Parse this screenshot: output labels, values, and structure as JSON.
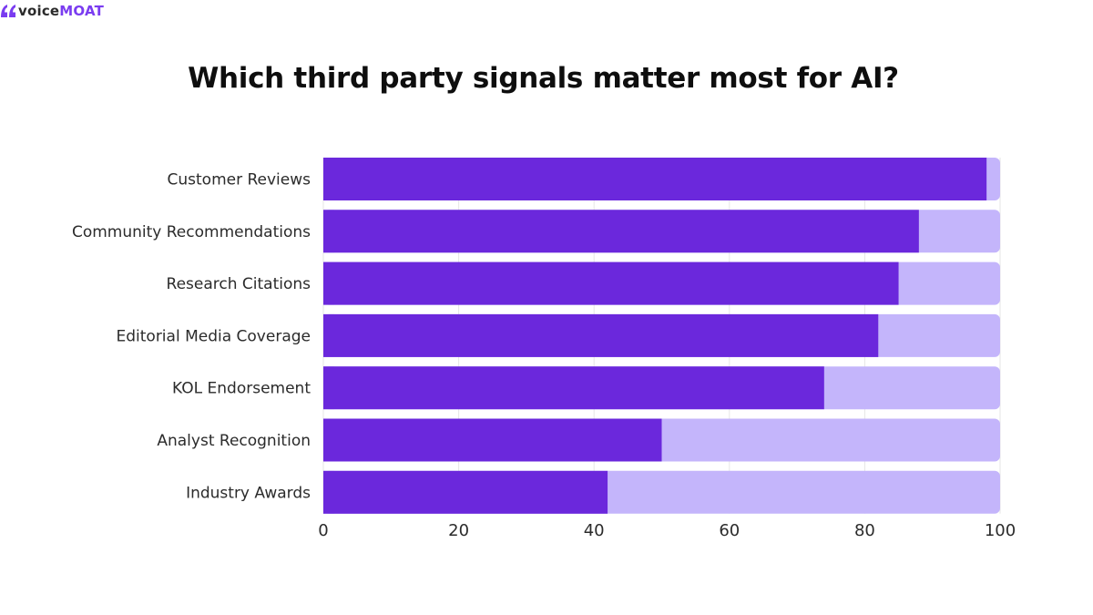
{
  "brand": {
    "name_part1": "voice",
    "name_part2": "MOAT",
    "icon": "quote-mark-icon",
    "color_part1": "#2a2a2a",
    "color_part2": "#7a3cf0"
  },
  "colors": {
    "bar_fill": "#6b28dc",
    "bar_track": "#c4b5fb",
    "gridline": "#e6e6e6"
  },
  "chart_data": {
    "type": "bar",
    "orientation": "horizontal",
    "stacked_against_total": true,
    "title": "Which third party signals matter most for AI?",
    "xlabel": "",
    "ylabel": "",
    "categories": [
      "Customer Reviews",
      "Community Recommendations",
      "Research Citations",
      "Editorial Media Coverage",
      "KOL Endorsement",
      "Analyst Recognition",
      "Industry Awards"
    ],
    "values": [
      98,
      88,
      85,
      82,
      74,
      50,
      42
    ],
    "total": 100,
    "xlim": [
      0,
      100
    ],
    "xticks": [
      "0",
      "20",
      "40",
      "60",
      "80",
      "100"
    ],
    "grid": true,
    "legend": "none"
  }
}
